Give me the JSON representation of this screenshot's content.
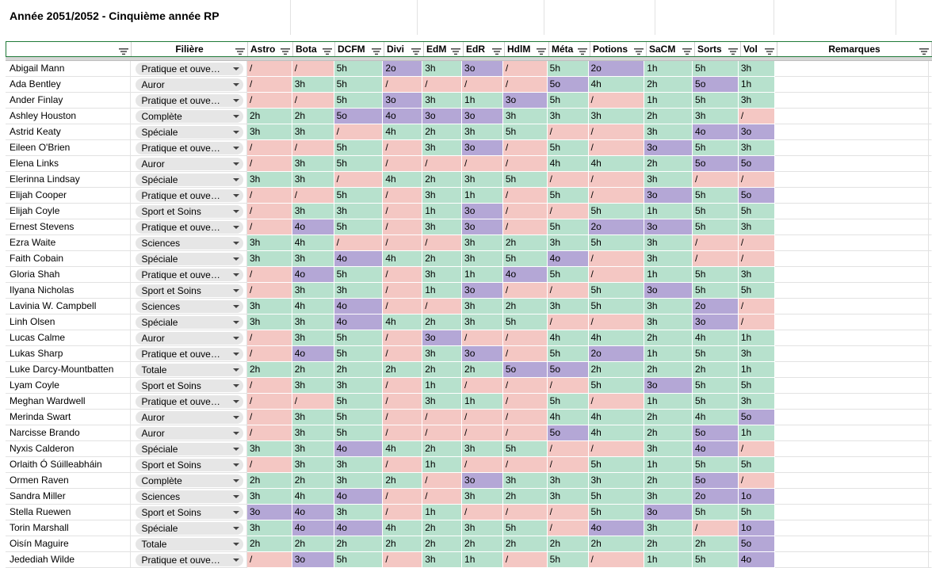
{
  "title": "Année 2051/2052 - Cinquième année RP",
  "colors": {
    "h": "#b7e1cd",
    "o": "#b4a7d6",
    "slash": "#f4c7c3",
    "header_border": "#1f7a38"
  },
  "columns": [
    {
      "key": "name",
      "label": "",
      "w": 159,
      "center": false
    },
    {
      "key": "fil",
      "label": "Filière",
      "w": 147,
      "center": true
    },
    {
      "key": "astro",
      "label": "Astro",
      "w": 57
    },
    {
      "key": "bota",
      "label": "Bota",
      "w": 53
    },
    {
      "key": "dcfm",
      "label": "DCFM",
      "w": 62
    },
    {
      "key": "divi",
      "label": "Divi",
      "w": 50
    },
    {
      "key": "edm",
      "label": "EdM",
      "w": 50
    },
    {
      "key": "edr",
      "label": "EdR",
      "w": 52
    },
    {
      "key": "hdlm",
      "label": "HdlM",
      "w": 56
    },
    {
      "key": "meta",
      "label": "Méta",
      "w": 52
    },
    {
      "key": "potions",
      "label": "Potions",
      "w": 71
    },
    {
      "key": "sacm",
      "label": "SaCM",
      "w": 61
    },
    {
      "key": "sorts",
      "label": "Sorts",
      "w": 58
    },
    {
      "key": "vol",
      "label": "Vol",
      "w": 46
    },
    {
      "key": "rem",
      "label": "Remarques",
      "w": 195,
      "center": true
    }
  ],
  "rows": [
    {
      "name": "Abigail Mann",
      "fil": "Pratique et ouve…",
      "g": [
        "/",
        "/",
        "5h",
        "2o",
        "3h",
        "3o",
        "/",
        "5h",
        "2o",
        "1h",
        "5h",
        "3h"
      ]
    },
    {
      "name": "Ada Bentley",
      "fil": "Auror",
      "g": [
        "/",
        "3h",
        "5h",
        "/",
        "/",
        "/",
        "/",
        "5o",
        "4h",
        "2h",
        "5o",
        "1h"
      ]
    },
    {
      "name": "Ander Finlay",
      "fil": "Pratique et ouve…",
      "g": [
        "/",
        "/",
        "5h",
        "3o",
        "3h",
        "1h",
        "3o",
        "5h",
        "/",
        "1h",
        "5h",
        "3h"
      ]
    },
    {
      "name": "Ashley Houston",
      "fil": "Complète",
      "g": [
        "2h",
        "2h",
        "5o",
        "4o",
        "3o",
        "3o",
        "3h",
        "3h",
        "3h",
        "2h",
        "3h",
        "/"
      ]
    },
    {
      "name": "Astrid Keaty",
      "fil": "Spéciale",
      "g": [
        "3h",
        "3h",
        "/",
        "4h",
        "2h",
        "3h",
        "5h",
        "/",
        "/",
        "3h",
        "4o",
        "3o"
      ]
    },
    {
      "name": "Eileen O'Brien",
      "fil": "Pratique et ouve…",
      "g": [
        "/",
        "/",
        "5h",
        "/",
        "3h",
        "3o",
        "/",
        "5h",
        "/",
        "3o",
        "5h",
        "3h"
      ]
    },
    {
      "name": "Elena Links",
      "fil": "Auror",
      "g": [
        "/",
        "3h",
        "5h",
        "/",
        "/",
        "/",
        "/",
        "4h",
        "4h",
        "2h",
        "5o",
        "5o"
      ]
    },
    {
      "name": "Elerinna Lindsay",
      "fil": "Spéciale",
      "g": [
        "3h",
        "3h",
        "/",
        "4h",
        "2h",
        "3h",
        "5h",
        "/",
        "/",
        "3h",
        "/",
        "/"
      ]
    },
    {
      "name": "Elijah Cooper",
      "fil": "Pratique et ouve…",
      "g": [
        "/",
        "/",
        "5h",
        "/",
        "3h",
        "1h",
        "/",
        "5h",
        "/",
        "3o",
        "5h",
        "5o"
      ]
    },
    {
      "name": "Elijah Coyle",
      "fil": "Sport et Soins",
      "g": [
        "/",
        "3h",
        "3h",
        "/",
        "1h",
        "3o",
        "/",
        "/",
        "5h",
        "1h",
        "5h",
        "5h"
      ]
    },
    {
      "name": "Ernest Stevens",
      "fil": "Pratique et ouve…",
      "g": [
        "/",
        "4o",
        "5h",
        "/",
        "3h",
        "3o",
        "/",
        "5h",
        "2o",
        "3o",
        "5h",
        "3h"
      ]
    },
    {
      "name": "Ezra Waite",
      "fil": "Sciences",
      "g": [
        "3h",
        "4h",
        "/",
        "/",
        "/",
        "3h",
        "2h",
        "3h",
        "5h",
        "3h",
        "/",
        "/"
      ]
    },
    {
      "name": "Faith Cobain",
      "fil": "Spéciale",
      "g": [
        "3h",
        "3h",
        "4o",
        "4h",
        "2h",
        "3h",
        "5h",
        "4o",
        "/",
        "3h",
        "/",
        "/"
      ]
    },
    {
      "name": "Gloria Shah",
      "fil": "Pratique et ouve…",
      "g": [
        "/",
        "4o",
        "5h",
        "/",
        "3h",
        "1h",
        "4o",
        "5h",
        "/",
        "1h",
        "5h",
        "3h"
      ]
    },
    {
      "name": "Ilyana Nicholas",
      "fil": "Sport et Soins",
      "g": [
        "/",
        "3h",
        "3h",
        "/",
        "1h",
        "3o",
        "/",
        "/",
        "5h",
        "3o",
        "5h",
        "5h"
      ]
    },
    {
      "name": "Lavinia W. Campbell",
      "fil": "Sciences",
      "g": [
        "3h",
        "4h",
        "4o",
        "/",
        "/",
        "3h",
        "2h",
        "3h",
        "5h",
        "3h",
        "2o",
        "/"
      ]
    },
    {
      "name": "Linh Olsen",
      "fil": "Spéciale",
      "g": [
        "3h",
        "3h",
        "4o",
        "4h",
        "2h",
        "3h",
        "5h",
        "/",
        "/",
        "3h",
        "3o",
        "/"
      ]
    },
    {
      "name": "Lucas Calme",
      "fil": "Auror",
      "g": [
        "/",
        "3h",
        "5h",
        "/",
        "3o",
        "/",
        "/",
        "4h",
        "4h",
        "2h",
        "4h",
        "1h"
      ]
    },
    {
      "name": "Lukas Sharp",
      "fil": "Pratique et ouve…",
      "g": [
        "/",
        "4o",
        "5h",
        "/",
        "3h",
        "3o",
        "/",
        "5h",
        "2o",
        "1h",
        "5h",
        "3h"
      ]
    },
    {
      "name": "Luke Darcy-Mountbatten",
      "fil": "Totale",
      "g": [
        "2h",
        "2h",
        "2h",
        "2h",
        "2h",
        "2h",
        "5o",
        "5o",
        "2h",
        "2h",
        "2h",
        "1h"
      ]
    },
    {
      "name": "Lyam Coyle",
      "fil": "Sport et Soins",
      "g": [
        "/",
        "3h",
        "3h",
        "/",
        "1h",
        "/",
        "/",
        "/",
        "5h",
        "3o",
        "5h",
        "5h"
      ]
    },
    {
      "name": "Meghan Wardwell",
      "fil": "Pratique et ouve…",
      "g": [
        "/",
        "/",
        "5h",
        "/",
        "3h",
        "1h",
        "/",
        "5h",
        "/",
        "1h",
        "5h",
        "3h"
      ]
    },
    {
      "name": "Merinda Swart",
      "fil": "Auror",
      "g": [
        "/",
        "3h",
        "5h",
        "/",
        "/",
        "/",
        "/",
        "4h",
        "4h",
        "2h",
        "4h",
        "5o"
      ]
    },
    {
      "name": "Narcisse Brando",
      "fil": "Auror",
      "g": [
        "/",
        "3h",
        "5h",
        "/",
        "/",
        "/",
        "/",
        "5o",
        "4h",
        "2h",
        "5o",
        "1h"
      ]
    },
    {
      "name": "Nyxis Calderon",
      "fil": "Spéciale",
      "g": [
        "3h",
        "3h",
        "4o",
        "4h",
        "2h",
        "3h",
        "5h",
        "/",
        "/",
        "3h",
        "4o",
        "/"
      ]
    },
    {
      "name": "Orlaith Ó Súilleabháin",
      "fil": "Sport et Soins",
      "g": [
        "/",
        "3h",
        "3h",
        "/",
        "1h",
        "/",
        "/",
        "/",
        "5h",
        "1h",
        "5h",
        "5h"
      ]
    },
    {
      "name": "Ormen Raven",
      "fil": "Complète",
      "g": [
        "2h",
        "2h",
        "3h",
        "2h",
        "/",
        "3o",
        "3h",
        "3h",
        "3h",
        "2h",
        "5o",
        "/"
      ]
    },
    {
      "name": "Sandra Miller",
      "fil": "Sciences",
      "g": [
        "3h",
        "4h",
        "4o",
        "/",
        "/",
        "3h",
        "2h",
        "3h",
        "5h",
        "3h",
        "2o",
        "1o"
      ]
    },
    {
      "name": "Stella Ruewen",
      "fil": "Sport et Soins",
      "g": [
        "3o",
        "4o",
        "3h",
        "/",
        "1h",
        "/",
        "/",
        "/",
        "5h",
        "3o",
        "5h",
        "5h"
      ]
    },
    {
      "name": "Torin Marshall",
      "fil": "Spéciale",
      "g": [
        "3h",
        "4o",
        "4o",
        "4h",
        "2h",
        "3h",
        "5h",
        "/",
        "4o",
        "3h",
        "/",
        "1o"
      ]
    },
    {
      "name": "Oisín Maguire",
      "fil": "Totale",
      "g": [
        "2h",
        "2h",
        "2h",
        "2h",
        "2h",
        "2h",
        "2h",
        "2h",
        "2h",
        "2h",
        "2h",
        "5o"
      ]
    },
    {
      "name": "Jedediah Wilde",
      "fil": "Pratique et ouve…",
      "g": [
        "/",
        "3o",
        "5h",
        "/",
        "3h",
        "1h",
        "/",
        "5h",
        "/",
        "1h",
        "5h",
        "4o"
      ]
    }
  ]
}
